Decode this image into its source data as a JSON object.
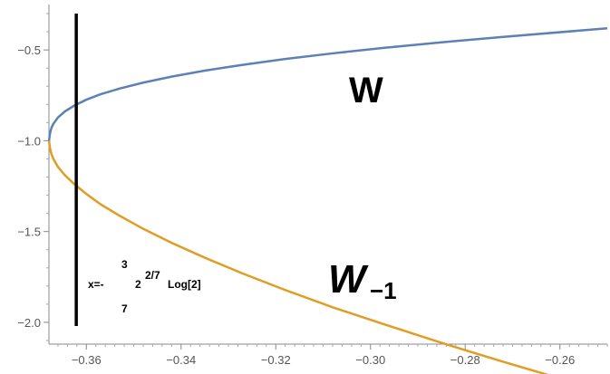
{
  "chart_data": {
    "type": "line",
    "title": "",
    "xlabel": "",
    "ylabel": "",
    "xlim": [
      -0.3679,
      -0.25
    ],
    "ylim": [
      -2.12,
      -0.25
    ],
    "grid": false,
    "x_ticks": [
      -0.36,
      -0.34,
      -0.32,
      -0.3,
      -0.28,
      -0.26
    ],
    "x_tick_labels": [
      "−0.36",
      "−0.34",
      "−0.32",
      "−0.30",
      "−0.28",
      "−0.26"
    ],
    "y_ticks": [
      -0.5,
      -1.0,
      -1.5,
      -2.0
    ],
    "y_tick_labels": [
      "−0.5",
      "−1.0",
      "−1.5",
      "−2.0"
    ],
    "series": [
      {
        "name": "W",
        "color": "#5e81b5",
        "x": [
          -0.36788,
          -0.3677,
          -0.3674,
          -0.367,
          -0.366,
          -0.3645,
          -0.3625,
          -0.36,
          -0.357,
          -0.353,
          -0.348,
          -0.342,
          -0.335,
          -0.327,
          -0.318,
          -0.308,
          -0.297,
          -0.285,
          -0.272,
          -0.25
        ],
        "y": [
          -1.0,
          -0.963,
          -0.931,
          -0.908,
          -0.872,
          -0.838,
          -0.806,
          -0.774,
          -0.744,
          -0.713,
          -0.68,
          -0.647,
          -0.614,
          -0.582,
          -0.55,
          -0.519,
          -0.488,
          -0.458,
          -0.428,
          -0.381
        ]
      },
      {
        "name": "W₋₁",
        "color": "#e19c24",
        "x": [
          -0.36788,
          -0.3677,
          -0.3674,
          -0.367,
          -0.366,
          -0.3645,
          -0.3625,
          -0.36,
          -0.357,
          -0.353,
          -0.348,
          -0.342,
          -0.335,
          -0.327,
          -0.318,
          -0.308,
          -0.297,
          -0.285,
          -0.272,
          -0.25
        ],
        "y": [
          -1.0,
          -1.038,
          -1.072,
          -1.098,
          -1.144,
          -1.191,
          -1.24,
          -1.293,
          -1.35,
          -1.413,
          -1.485,
          -1.562,
          -1.644,
          -1.731,
          -1.822,
          -1.917,
          -2.012,
          -2.113,
          -2.217,
          -2.386
        ]
      }
    ],
    "vertical_line": {
      "x": -0.36213,
      "y_from": -0.3,
      "y_to": -2.02,
      "color": "#000000"
    },
    "labels": {
      "w": "W",
      "wm1_main": "W",
      "wm1_sub": "−1"
    },
    "annotation": {
      "prefix": "x=-",
      "numerator": "3",
      "denominator": "7",
      "base": "2",
      "exponent": "2/7",
      "suffix": "Log[2]"
    }
  }
}
